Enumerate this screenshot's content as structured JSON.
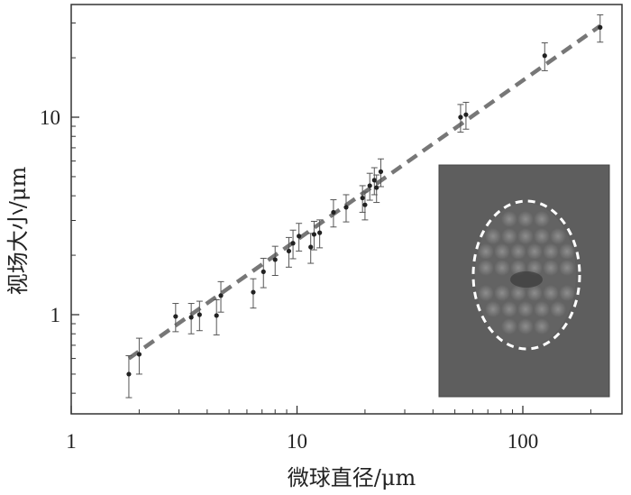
{
  "chart_data": {
    "type": "scatter",
    "title": "",
    "xlabel": "微球直径/μm",
    "ylabel": "视场大小/μm",
    "xscale": "log",
    "yscale": "log",
    "xlim": [
      1,
      260
    ],
    "ylim": [
      0.5,
      35
    ],
    "x_ticks": [
      "1",
      "10",
      "100"
    ],
    "y_ticks": [
      "1",
      "10"
    ],
    "grid": false,
    "legend": "none",
    "colors": {
      "points": "#222222",
      "fit_line": "#777777",
      "inset_ellipse": "#ffffff"
    },
    "series": [
      {
        "points": [
          {
            "x": 1.8,
            "y": 0.5,
            "err": 0.12
          },
          {
            "x": 2.0,
            "y": 0.63,
            "err": 0.13
          },
          {
            "x": 2.9,
            "y": 0.98,
            "err": 0.16
          },
          {
            "x": 3.4,
            "y": 0.97,
            "err": 0.17
          },
          {
            "x": 3.7,
            "y": 1.0,
            "err": 0.17
          },
          {
            "x": 4.4,
            "y": 0.99,
            "err": 0.2
          },
          {
            "x": 4.6,
            "y": 1.25,
            "err": 0.22
          },
          {
            "x": 6.4,
            "y": 1.3,
            "err": 0.22
          },
          {
            "x": 7.1,
            "y": 1.65,
            "err": 0.28
          },
          {
            "x": 8.0,
            "y": 1.9,
            "err": 0.32
          },
          {
            "x": 9.2,
            "y": 2.1,
            "err": 0.36
          },
          {
            "x": 9.6,
            "y": 2.3,
            "err": 0.38
          },
          {
            "x": 10.2,
            "y": 2.5,
            "err": 0.4
          },
          {
            "x": 11.5,
            "y": 2.2,
            "err": 0.38
          },
          {
            "x": 11.9,
            "y": 2.55,
            "err": 0.42
          },
          {
            "x": 12.6,
            "y": 2.6,
            "err": 0.42
          },
          {
            "x": 14.5,
            "y": 3.3,
            "err": 0.52
          },
          {
            "x": 16.5,
            "y": 3.5,
            "err": 0.55
          },
          {
            "x": 19.5,
            "y": 3.9,
            "err": 0.6
          },
          {
            "x": 20.0,
            "y": 3.6,
            "err": 0.58
          },
          {
            "x": 21.0,
            "y": 4.5,
            "err": 0.7
          },
          {
            "x": 22.0,
            "y": 4.8,
            "err": 0.75
          },
          {
            "x": 22.5,
            "y": 4.4,
            "err": 0.7
          },
          {
            "x": 23.5,
            "y": 5.3,
            "err": 0.85
          },
          {
            "x": 53.0,
            "y": 10.0,
            "err": 1.6
          },
          {
            "x": 56.0,
            "y": 10.3,
            "err": 1.6
          },
          {
            "x": 125.0,
            "y": 20.5,
            "err": 3.3
          },
          {
            "x": 220.0,
            "y": 28.5,
            "err": 4.5
          }
        ]
      }
    ],
    "fit_line": {
      "x": [
        1.8,
        220
      ],
      "y": [
        0.6,
        29
      ]
    }
  }
}
